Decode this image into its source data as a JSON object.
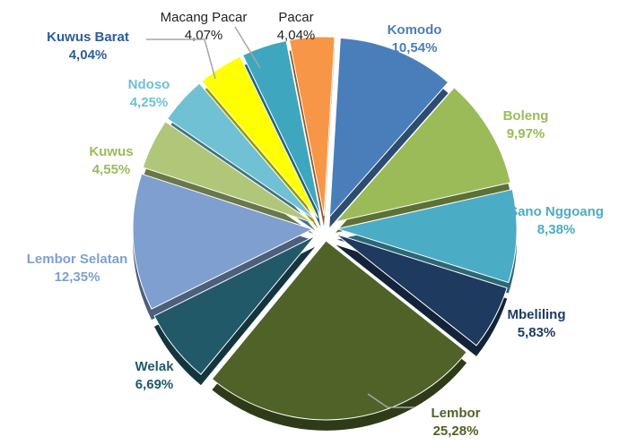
{
  "chart_data": {
    "type": "pie",
    "categories": [
      "Komodo",
      "Boleng",
      "Sano Nggoang",
      "Mbeliling",
      "Lembor",
      "Welak",
      "Lembor Selatan",
      "Kuwus",
      "Ndoso",
      "Kuwus Barat",
      "Macang Pacar",
      "Pacar"
    ],
    "values": [
      10.54,
      9.97,
      8.38,
      5.83,
      25.28,
      6.69,
      12.35,
      4.55,
      4.25,
      4.04,
      4.07,
      4.04
    ],
    "value_labels": [
      "10,54%",
      "9,97%",
      "8,38%",
      "5,83%",
      "25,28%",
      "6,69%",
      "12,35%",
      "4,55%",
      "4,25%",
      "4,04%",
      "4,07%",
      "4,04%"
    ],
    "colors": [
      "#4a7ebb",
      "#9bbb59",
      "#4bacc6",
      "#1f3a5f",
      "#4f6228",
      "#215968",
      "#7f9fd0",
      "#b0c77a",
      "#6fc1d3",
      "#ffff00",
      "#3fa6bf",
      "#f79646"
    ],
    "label_colors": [
      "#4a7ebb",
      "#9bbb59",
      "#4bacc6",
      "#1f3a5f",
      "#4f6228",
      "#215968",
      "#7f9fd0",
      "#9bbb59",
      "#6fc1d3",
      "#2e5c9a",
      "#222222",
      "#222222"
    ]
  }
}
